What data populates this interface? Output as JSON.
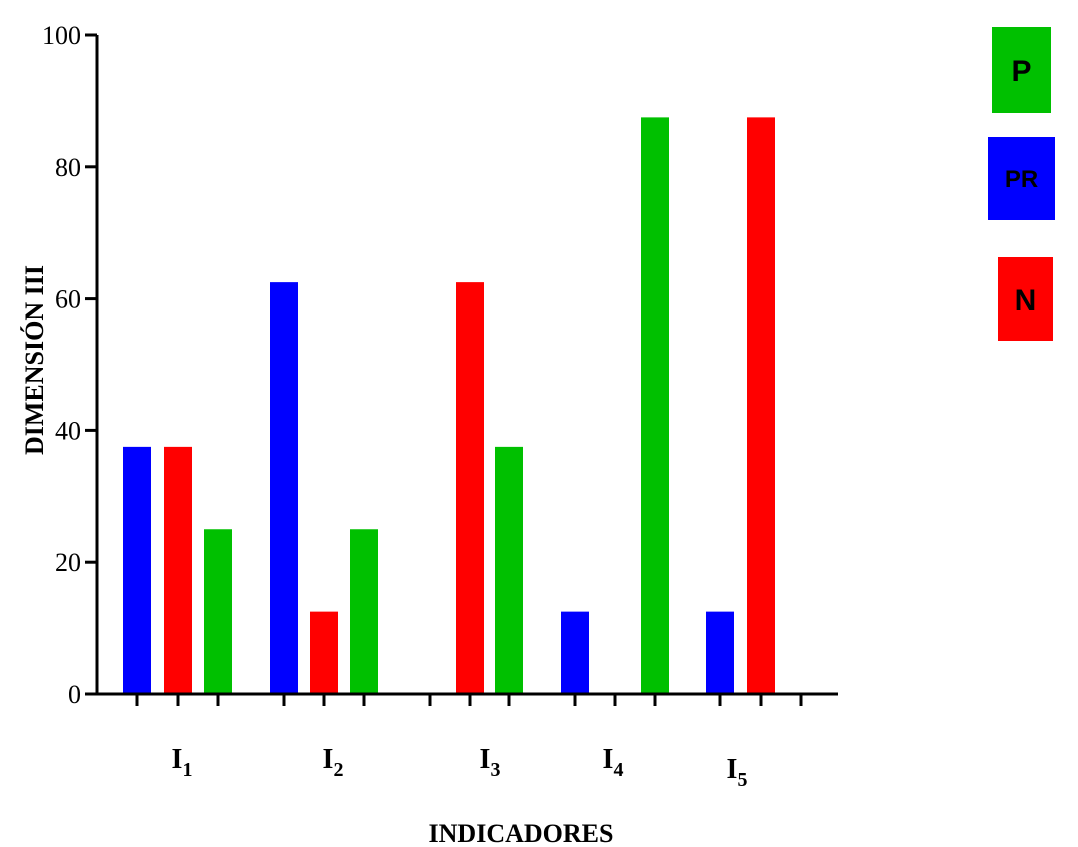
{
  "chart_data": {
    "type": "bar",
    "categories": [
      "I",
      "I",
      "I",
      "I",
      "I"
    ],
    "category_subscripts": [
      "1",
      "2",
      "3",
      "4",
      "5"
    ],
    "series": [
      {
        "name": "PR",
        "color": "#0000ff",
        "values": [
          37.5,
          62.5,
          0,
          12.5,
          12.5
        ]
      },
      {
        "name": "N",
        "color": "#ff0000",
        "values": [
          37.5,
          12.5,
          62.5,
          0,
          87.5
        ]
      },
      {
        "name": "P",
        "color": "#00c000",
        "values": [
          25,
          25,
          37.5,
          87.5,
          0
        ]
      }
    ],
    "bar_groups": [
      [
        "PR",
        "N",
        "P"
      ],
      [
        "PR",
        "N",
        "P"
      ],
      [
        "N",
        "P"
      ],
      [
        "PR",
        "P"
      ],
      [
        "PR",
        "N"
      ]
    ],
    "ylabel": "DIMENSIÓN  III",
    "xlabel": "INDICADORES",
    "ylim": [
      0,
      100
    ],
    "yticks": [
      "0",
      "20",
      "40",
      "60",
      "80",
      "100"
    ],
    "legend": {
      "placement": "right",
      "order": [
        "P",
        "PR",
        "N"
      ]
    },
    "grid": false
  }
}
